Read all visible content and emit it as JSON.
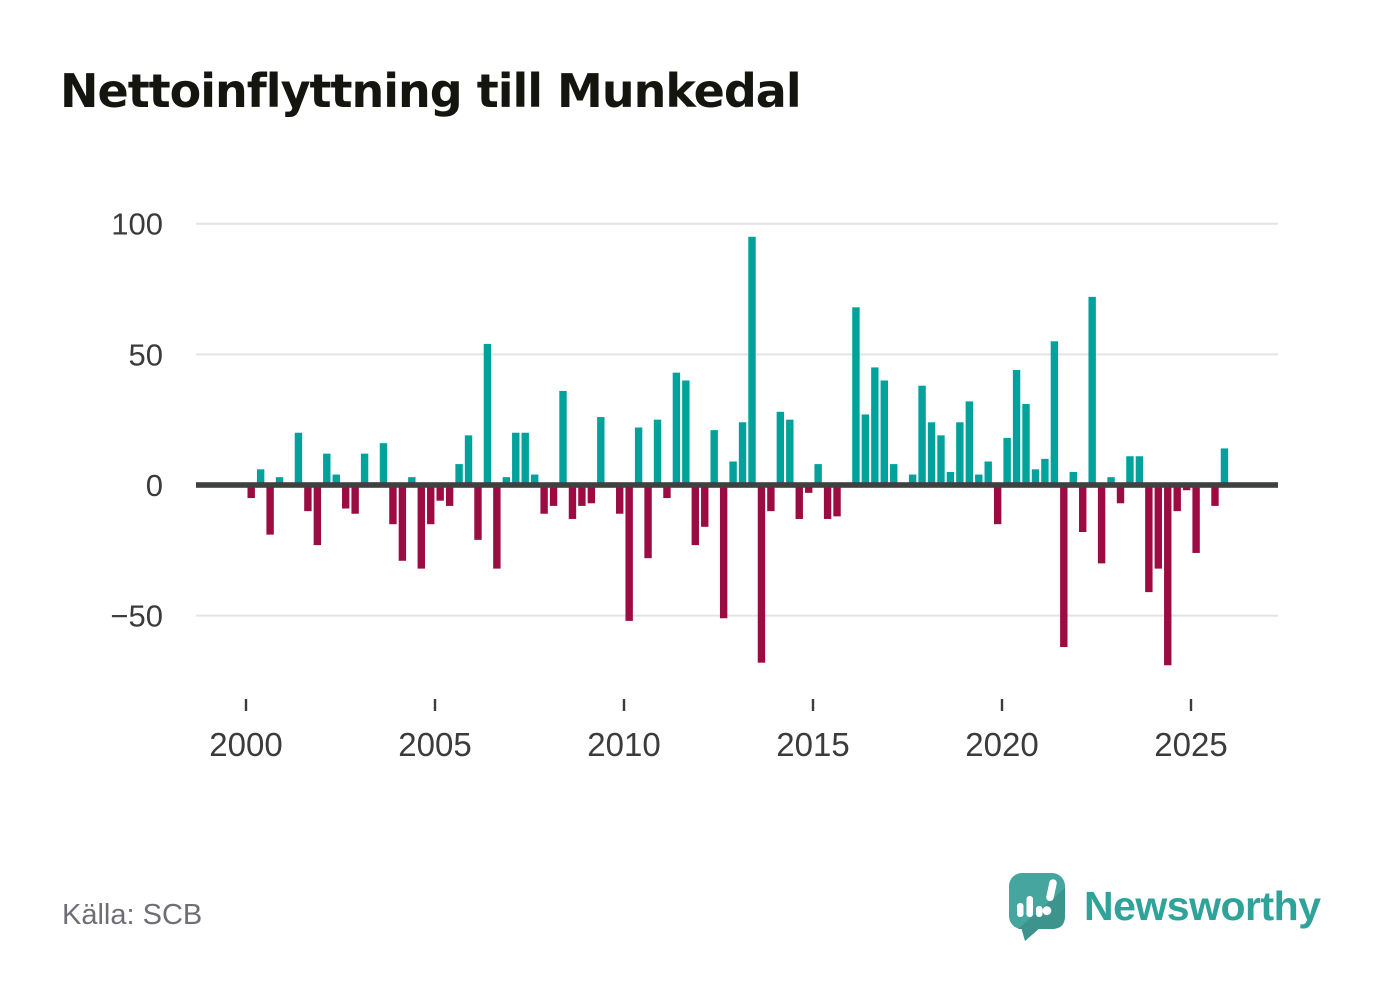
{
  "title": "Nettoinflyttning till Munkedal",
  "source": "Källa: SCB",
  "brand": {
    "name": "Newsworthy"
  },
  "colors": {
    "positive": "#00a29b",
    "negative": "#9c0b42",
    "zero_line": "#3f4040",
    "gridline": "#e4e4e4",
    "axis_text": "#3b3b3b",
    "title_text": "#15150f",
    "source_text": "#6f6e76",
    "brand_teal": "#2fa29a",
    "logo_teal": "#46a59e",
    "logo_teal_dark": "#3c948d"
  },
  "y_axis": {
    "ticks": [
      100,
      50,
      0,
      -50
    ],
    "tick_labels": [
      "100",
      "50",
      "0",
      "−50"
    ],
    "gridline_values": [
      100,
      50,
      -50
    ]
  },
  "x_axis": {
    "tick_years": [
      "2000",
      "2005",
      "2010",
      "2015",
      "2020",
      "2025"
    ]
  },
  "chart_data": {
    "type": "bar",
    "title": "Nettoinflyttning till Munkedal",
    "xlabel": "",
    "ylabel": "",
    "x_unit": "quarter",
    "frequency": "quarterly",
    "start_year": 2000,
    "end_year": 2025,
    "ylim": [
      -75,
      110
    ],
    "grid": true,
    "legend": false,
    "positive_color": "#00a29b",
    "negative_color": "#9c0b42",
    "series_name": "Nettoinflyttning",
    "values": [
      -5,
      6,
      -19,
      3,
      0,
      20,
      -10,
      -23,
      12,
      4,
      -9,
      -11,
      12,
      1,
      16,
      -15,
      -29,
      3,
      -32,
      -15,
      -6,
      -8,
      8,
      19,
      -21,
      54,
      -32,
      3,
      20,
      20,
      4,
      -11,
      -8,
      36,
      -13,
      -8,
      -7,
      26,
      1,
      -11,
      -52,
      22,
      -28,
      25,
      -5,
      43,
      40,
      -23,
      -16,
      21,
      -51,
      9,
      24,
      95,
      -68,
      -10,
      28,
      25,
      -13,
      -3,
      8,
      -13,
      -12,
      0,
      68,
      27,
      45,
      40,
      8,
      0,
      4,
      38,
      24,
      19,
      5,
      24,
      32,
      4,
      9,
      -15,
      18,
      44,
      31,
      6,
      10,
      55,
      -62,
      5,
      -18,
      72,
      -30,
      3,
      -7,
      11,
      11,
      -41,
      -32,
      -69,
      -10,
      -2,
      -26,
      0,
      -8,
      14
    ]
  }
}
